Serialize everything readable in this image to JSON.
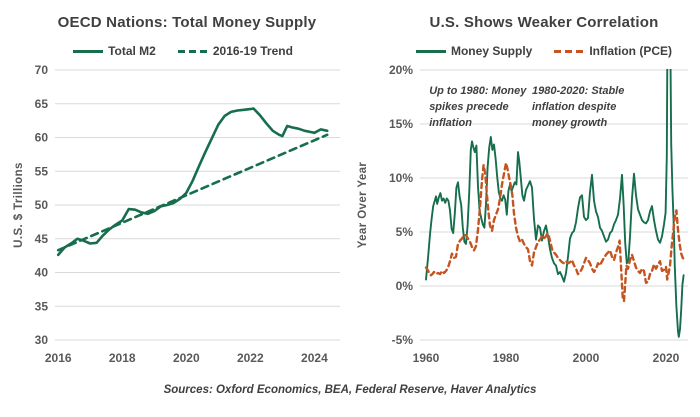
{
  "sources": "Sources: Oxford Economics, BEA, Federal Reserve, Haver Analytics",
  "colors": {
    "green": "#166e4d",
    "orange": "#c55421",
    "gridline": "#d9d9d9",
    "title_gray": "#404040",
    "tick_gray": "#595959"
  },
  "chart_data": [
    {
      "type": "line",
      "title": "OECD Nations: Total Money Supply",
      "ylabel": "U.S. $ Trillions",
      "xlim": [
        2015.9,
        2024.8
      ],
      "ylim": [
        30,
        70
      ],
      "xticks": [
        2016,
        2018,
        2020,
        2022,
        2024
      ],
      "yticks": [
        70,
        65,
        60,
        55,
        50,
        45,
        40,
        35,
        30
      ],
      "ytick_suffix": "",
      "grid": "horizontal",
      "legend_position": "top",
      "series": [
        {
          "name": "Total M2",
          "color": "#166e4d",
          "dash": null,
          "width": 2.6,
          "x": [
            2016.0,
            2016.2,
            2016.4,
            2016.6,
            2016.8,
            2017.0,
            2017.2,
            2017.4,
            2017.6,
            2017.8,
            2018.0,
            2018.2,
            2018.4,
            2018.6,
            2018.8,
            2019.0,
            2019.2,
            2019.4,
            2019.6,
            2019.8,
            2020.0,
            2020.2,
            2020.4,
            2020.6,
            2020.8,
            2021.0,
            2021.2,
            2021.4,
            2021.6,
            2021.8,
            2022.0,
            2022.1,
            2022.3,
            2022.5,
            2022.7,
            2022.9,
            2023.0,
            2023.15,
            2023.3,
            2023.5,
            2023.7,
            2023.9,
            2024.0,
            2024.2,
            2024.4
          ],
          "y": [
            42.6,
            43.7,
            44.3,
            45.0,
            44.7,
            44.3,
            44.4,
            45.5,
            46.4,
            47.1,
            47.7,
            49.4,
            49.3,
            48.9,
            48.7,
            49.1,
            49.8,
            50.0,
            50.3,
            50.9,
            51.8,
            53.6,
            55.8,
            57.9,
            59.9,
            61.9,
            63.2,
            63.8,
            64.0,
            64.1,
            64.2,
            64.3,
            63.3,
            62.1,
            61.0,
            60.4,
            60.2,
            61.7,
            61.5,
            61.3,
            61.0,
            60.8,
            60.7,
            61.2,
            61.0
          ]
        },
        {
          "name": "2016-19 Trend",
          "color": "#166e4d",
          "dash": "7 5",
          "width": 2.6,
          "x": [
            2016.0,
            2024.4
          ],
          "y": [
            43.3,
            60.4
          ]
        }
      ]
    },
    {
      "type": "line",
      "title": "U.S. Shows Weaker Correlation",
      "ylabel": "Year Over Year",
      "xlim": [
        1958.5,
        2025.5
      ],
      "ylim": [
        -5,
        20
      ],
      "xticks": [
        1960,
        1980,
        2000,
        2020
      ],
      "yticks": [
        20,
        15,
        10,
        5,
        0,
        -5
      ],
      "ytick_suffix": "%",
      "grid": "horizontal",
      "legend_position": "top",
      "annotations": [
        {
          "x": 1960.8,
          "y": 17.8,
          "lines": [
            "Up to 1980:  Money",
            "spikes precede",
            "inflation"
          ]
        },
        {
          "x": 1986.5,
          "y": 17.8,
          "lines": [
            "1980-2020:  Stable",
            "inflation despite",
            "money growth"
          ]
        }
      ],
      "series": [
        {
          "name": "Money Supply",
          "color": "#166e4d",
          "dash": null,
          "width": 1.9,
          "x": [
            1960.0,
            1960.3,
            1960.6,
            1961.0,
            1961.4,
            1961.8,
            1962.2,
            1962.5,
            1962.8,
            1963.2,
            1963.6,
            1964.0,
            1964.4,
            1964.8,
            1965.2,
            1965.6,
            1966.0,
            1966.4,
            1966.8,
            1967.2,
            1967.6,
            1968.0,
            1968.4,
            1968.8,
            1969.2,
            1969.6,
            1970.0,
            1970.4,
            1970.8,
            1971.2,
            1971.5,
            1971.8,
            1972.2,
            1972.6,
            1973.0,
            1973.4,
            1973.8,
            1974.2,
            1974.6,
            1975.0,
            1975.4,
            1975.8,
            1976.2,
            1976.6,
            1977.0,
            1977.4,
            1977.8,
            1978.2,
            1978.6,
            1979.0,
            1979.4,
            1979.8,
            1980.2,
            1980.6,
            1981.0,
            1981.4,
            1981.8,
            1982.2,
            1982.6,
            1983.0,
            1983.3,
            1983.7,
            1984.1,
            1984.5,
            1985.0,
            1985.5,
            1986.0,
            1986.5,
            1987.0,
            1987.5,
            1988.0,
            1988.5,
            1989.0,
            1989.5,
            1990.0,
            1990.5,
            1991.0,
            1991.5,
            1992.0,
            1992.5,
            1993.0,
            1993.5,
            1994.0,
            1994.5,
            1995.0,
            1995.5,
            1996.0,
            1996.5,
            1997.0,
            1997.5,
            1998.0,
            1998.5,
            1999.0,
            1999.5,
            2000.0,
            2000.5,
            2001.0,
            2001.5,
            2002.0,
            2002.5,
            2003.0,
            2003.5,
            2004.0,
            2004.5,
            2005.0,
            2005.5,
            2006.0,
            2006.5,
            2007.0,
            2007.5,
            2008.0,
            2008.5,
            2009.0,
            2009.4,
            2009.8,
            2010.2,
            2010.6,
            2011.0,
            2011.5,
            2012.0,
            2012.5,
            2013.0,
            2013.5,
            2014.0,
            2014.5,
            2015.0,
            2015.5,
            2016.0,
            2016.5,
            2017.0,
            2017.5,
            2018.0,
            2018.5,
            2019.0,
            2019.5,
            2019.9,
            2020.2,
            2020.4,
            2021.0,
            2021.3,
            2021.6,
            2021.9,
            2022.2,
            2022.6,
            2023.0,
            2023.2,
            2023.5,
            2023.8,
            2024.1,
            2024.4
          ],
          "y": [
            0.6,
            1.8,
            3.0,
            4.8,
            6.2,
            7.4,
            7.9,
            8.3,
            7.6,
            8.2,
            8.6,
            7.9,
            8.1,
            7.7,
            8.1,
            7.9,
            7.0,
            5.3,
            4.9,
            6.7,
            9.1,
            9.6,
            8.3,
            7.5,
            5.4,
            4.1,
            3.9,
            5.6,
            8.6,
            12.6,
            13.4,
            12.9,
            12.4,
            13.0,
            9.2,
            7.0,
            6.3,
            5.7,
            5.4,
            7.6,
            11.0,
            12.8,
            13.8,
            12.6,
            13.1,
            11.8,
            10.1,
            8.7,
            8.1,
            7.9,
            8.4,
            8.0,
            6.6,
            8.8,
            9.4,
            8.8,
            9.2,
            9.6,
            9.4,
            12.4,
            11.6,
            10.0,
            8.4,
            7.9,
            8.9,
            9.3,
            9.7,
            9.1,
            6.2,
            4.3,
            5.6,
            5.4,
            4.2,
            5.1,
            5.6,
            4.6,
            3.4,
            2.6,
            2.1,
            1.9,
            1.1,
            1.3,
            0.9,
            0.4,
            1.2,
            2.7,
            4.4,
            4.9,
            5.1,
            5.9,
            7.2,
            8.2,
            8.4,
            6.4,
            6.1,
            6.3,
            8.7,
            10.3,
            7.9,
            6.9,
            6.4,
            5.4,
            5.1,
            4.6,
            4.1,
            4.3,
            4.9,
            5.1,
            5.7,
            6.1,
            6.6,
            8.1,
            10.3,
            7.6,
            4.0,
            2.1,
            2.4,
            4.6,
            8.1,
            10.4,
            8.4,
            7.1,
            6.6,
            6.1,
            5.9,
            5.8,
            6.1,
            6.9,
            7.4,
            6.1,
            5.1,
            4.3,
            4.0,
            4.6,
            5.7,
            6.8,
            12.0,
            26.0,
            26.5,
            13.2,
            9.0,
            6.0,
            1.8,
            -1.9,
            -4.2,
            -4.7,
            -4.0,
            -2.2,
            0.1,
            1.0
          ]
        },
        {
          "name": "Inflation (PCE)",
          "color": "#c55421",
          "dash": "5 4",
          "width": 2.4,
          "x": [
            1960.0,
            1960.4,
            1960.8,
            1961.2,
            1961.6,
            1962.0,
            1962.5,
            1963.0,
            1963.5,
            1964.0,
            1964.5,
            1965.0,
            1965.5,
            1966.0,
            1966.5,
            1967.0,
            1967.5,
            1968.0,
            1968.5,
            1969.0,
            1969.5,
            1970.0,
            1970.5,
            1971.0,
            1971.5,
            1972.0,
            1972.5,
            1973.0,
            1973.5,
            1974.0,
            1974.4,
            1974.8,
            1975.2,
            1975.6,
            1976.0,
            1976.5,
            1977.0,
            1977.5,
            1978.0,
            1978.5,
            1979.0,
            1979.5,
            1980.0,
            1980.4,
            1980.8,
            1981.2,
            1981.6,
            1982.0,
            1982.5,
            1983.0,
            1983.5,
            1984.0,
            1984.5,
            1985.0,
            1985.5,
            1986.0,
            1986.5,
            1987.0,
            1987.5,
            1988.0,
            1988.5,
            1989.0,
            1989.5,
            1990.0,
            1990.4,
            1990.8,
            1991.2,
            1991.6,
            1992.0,
            1992.5,
            1993.0,
            1993.5,
            1994.0,
            1994.5,
            1995.0,
            1995.5,
            1996.0,
            1996.5,
            1997.0,
            1997.5,
            1998.0,
            1998.5,
            1999.0,
            1999.5,
            2000.0,
            2000.5,
            2001.0,
            2001.5,
            2002.0,
            2002.5,
            2003.0,
            2003.5,
            2004.0,
            2004.5,
            2005.0,
            2005.5,
            2006.0,
            2006.5,
            2007.0,
            2007.5,
            2008.0,
            2008.4,
            2008.8,
            2009.2,
            2009.5,
            2009.8,
            2010.1,
            2010.5,
            2011.0,
            2011.5,
            2012.0,
            2012.5,
            2013.0,
            2013.5,
            2014.0,
            2014.5,
            2015.0,
            2015.5,
            2016.0,
            2016.5,
            2017.0,
            2017.5,
            2018.0,
            2018.5,
            2019.0,
            2019.5,
            2020.0,
            2020.3,
            2020.7,
            2021.0,
            2021.4,
            2021.8,
            2022.2,
            2022.6,
            2023.0,
            2023.4,
            2023.8,
            2024.2,
            2024.4
          ],
          "y": [
            1.7,
            1.5,
            1.2,
            1.0,
            1.1,
            1.3,
            1.1,
            1.2,
            1.1,
            1.4,
            1.2,
            1.4,
            1.7,
            2.3,
            3.0,
            2.6,
            2.7,
            3.9,
            4.2,
            4.4,
            4.7,
            4.7,
            4.4,
            4.1,
            3.6,
            3.3,
            3.7,
            5.2,
            7.3,
            9.8,
            11.2,
            10.4,
            8.6,
            6.9,
            5.6,
            5.1,
            6.1,
            6.6,
            7.1,
            8.1,
            9.4,
            10.4,
            11.4,
            10.8,
            10.0,
            9.3,
            8.4,
            6.7,
            5.4,
            4.6,
            4.1,
            4.3,
            3.9,
            3.6,
            3.4,
            2.3,
            1.9,
            3.1,
            3.6,
            4.1,
            4.3,
            4.6,
            4.4,
            4.6,
            4.9,
            4.5,
            3.9,
            3.3,
            3.1,
            2.9,
            2.6,
            2.4,
            2.2,
            2.1,
            2.3,
            2.1,
            2.2,
            2.4,
            1.9,
            1.6,
            1.1,
            1.3,
            1.6,
            2.1,
            2.6,
            2.4,
            2.1,
            1.6,
            1.3,
            1.6,
            2.1,
            1.9,
            2.3,
            2.6,
            2.9,
            3.1,
            3.3,
            2.7,
            2.4,
            3.1,
            3.6,
            4.2,
            1.5,
            -1.2,
            -1.4,
            0.2,
            1.9,
            1.6,
            2.4,
            2.9,
            2.3,
            1.7,
            1.4,
            1.2,
            1.6,
            1.4,
            0.3,
            0.4,
            1.1,
            1.4,
            2.0,
            1.6,
            2.0,
            2.3,
            1.4,
            1.5,
            1.8,
            0.6,
            1.3,
            1.9,
            3.6,
            5.0,
            6.4,
            7.0,
            5.2,
            3.9,
            3.0,
            2.6,
            2.5
          ]
        }
      ]
    }
  ]
}
